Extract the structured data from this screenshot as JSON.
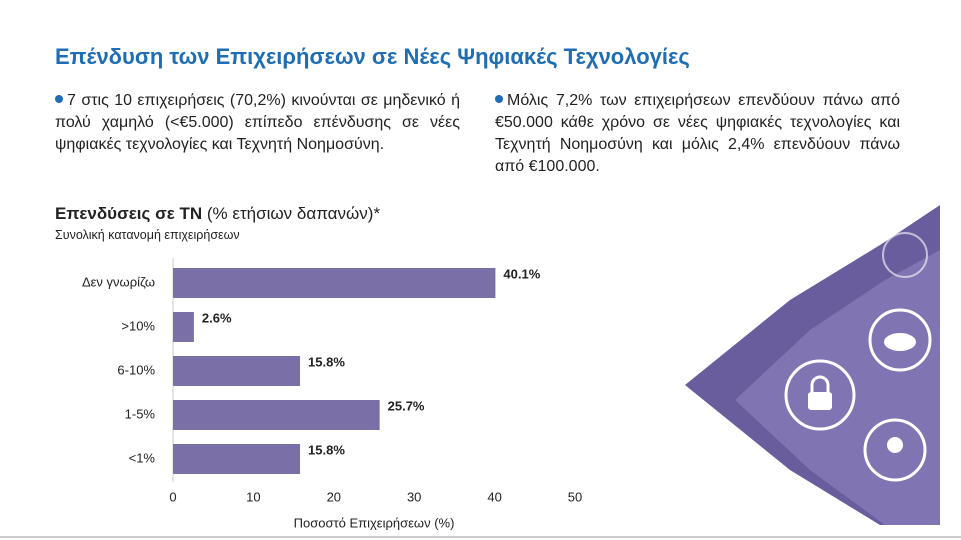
{
  "title": "Επένδυση των Επιχειρήσεων σε Νέες Ψηφιακές Τεχνολογίες",
  "bullets": [
    "7 στις 10 επιχειρήσεις (70,2%) κινούνται σε μηδενικό ή πολύ χαμηλό (<€5.000) επίπεδο επένδυσης σε νέες ψηφιακές τεχνολογίες και Τεχνητή Νοημοσύνη.",
    "Μόλις 7,2% των επιχειρήσεων επενδύουν πάνω από €50.000 κάθε χρόνο σε νέες ψηφιακές τεχνολογίες και Τεχνητή Νοημοσύνη και μόλις 2,4% επενδύουν πάνω από €100.000."
  ],
  "chart_data": {
    "type": "bar",
    "orientation": "horizontal",
    "title": "Επενδύσεις σε ΤΝ",
    "title_note": "(% ετήσιων δαπανών)*",
    "subtitle": "Συνολική κατανομή επιχειρήσεων",
    "categories": [
      "Δεν γνωρίζω",
      ">10%",
      "6-10%",
      "1-5%",
      "<1%"
    ],
    "values": [
      40.1,
      2.6,
      15.8,
      25.7,
      15.8
    ],
    "value_labels": [
      "40.1%",
      "2.6%",
      "15.8%",
      "25.7%",
      "15.8%"
    ],
    "color": "#7b6fa8",
    "xlim": [
      0,
      50
    ],
    "xticks": [
      0,
      10,
      20,
      30,
      40,
      50
    ],
    "xlabel": "Ποσοστό Επιχειρήσεων (%)",
    "grid": false
  }
}
